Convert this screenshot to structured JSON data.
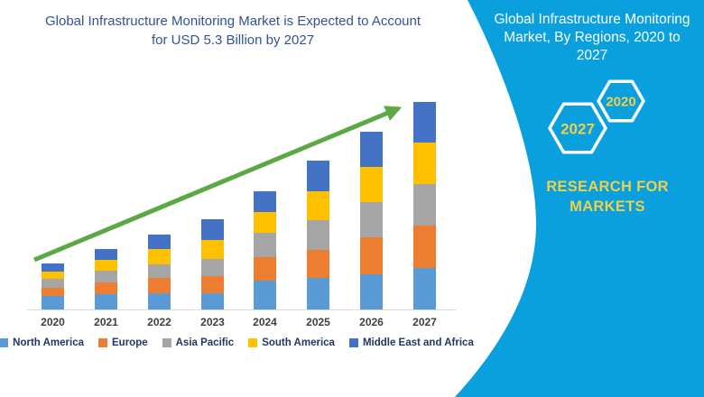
{
  "colors": {
    "panel_teal": "#0AA0DE",
    "title_navy": "#2F5496",
    "axis_gray": "#D9D9D9",
    "tick_label_gray": "#3F3F3F",
    "legend_text_navy": "#203864",
    "arrow_green": "#5CA844",
    "accent_yellow": "#EDD04B",
    "north_america": "#5B9BD5",
    "europe": "#ED7D31",
    "asia_pacific": "#A5A5A5",
    "south_america": "#FFC000",
    "middle_east_africa": "#4472C4"
  },
  "chart": {
    "title_lines": [
      "Global Infrastructure Monitoring Market is Expected to Account",
      "for USD 5.3 Billion by 2027"
    ]
  },
  "chart_data": {
    "type": "bar",
    "stacked": true,
    "title": "Global Infrastructure Monitoring Market is Expected to Account for USD 5.3 Billion by 2027",
    "categories": [
      "2020",
      "2021",
      "2022",
      "2023",
      "2024",
      "2025",
      "2026",
      "2027"
    ],
    "unit": "USD billion (estimated from bar heights; no y-axis labels shown, totals anchored to USD 5.3 billion in 2027)",
    "series": [
      {
        "name": "North America",
        "color": "#5B9BD5",
        "values": [
          0.35,
          0.39,
          0.41,
          0.41,
          0.74,
          0.81,
          0.9,
          1.06
        ]
      },
      {
        "name": "Europe",
        "color": "#ED7D31",
        "values": [
          0.21,
          0.3,
          0.39,
          0.44,
          0.6,
          0.71,
          0.94,
          1.08
        ]
      },
      {
        "name": "Asia Pacific",
        "color": "#A5A5A5",
        "values": [
          0.23,
          0.3,
          0.35,
          0.44,
          0.62,
          0.76,
          0.9,
          1.06
        ]
      },
      {
        "name": "South America",
        "color": "#FFC000",
        "values": [
          0.18,
          0.28,
          0.39,
          0.48,
          0.53,
          0.74,
          0.9,
          1.06
        ]
      },
      {
        "name": "Middle East and Africa",
        "color": "#4472C4",
        "values": [
          0.21,
          0.28,
          0.37,
          0.53,
          0.53,
          0.78,
          0.9,
          1.04
        ]
      }
    ],
    "totals_estimated": [
      1.18,
      1.55,
      1.91,
      2.3,
      3.02,
      3.8,
      4.54,
      5.3
    ],
    "ylim": [
      0,
      5.6
    ],
    "grid": false,
    "legend_position": "bottom",
    "annotations": [
      "green upward trend arrow from 2020 to 2027 bar tops"
    ]
  },
  "side_panel": {
    "title_lines": [
      "Global Infrastructure Monitoring",
      "Market, By Regions, 2020 to",
      "2027"
    ],
    "hexagon_back_label": "2027",
    "hexagon_front_label": "2020",
    "brand_lines": [
      "RESEARCH FOR",
      "MARKETS"
    ]
  }
}
